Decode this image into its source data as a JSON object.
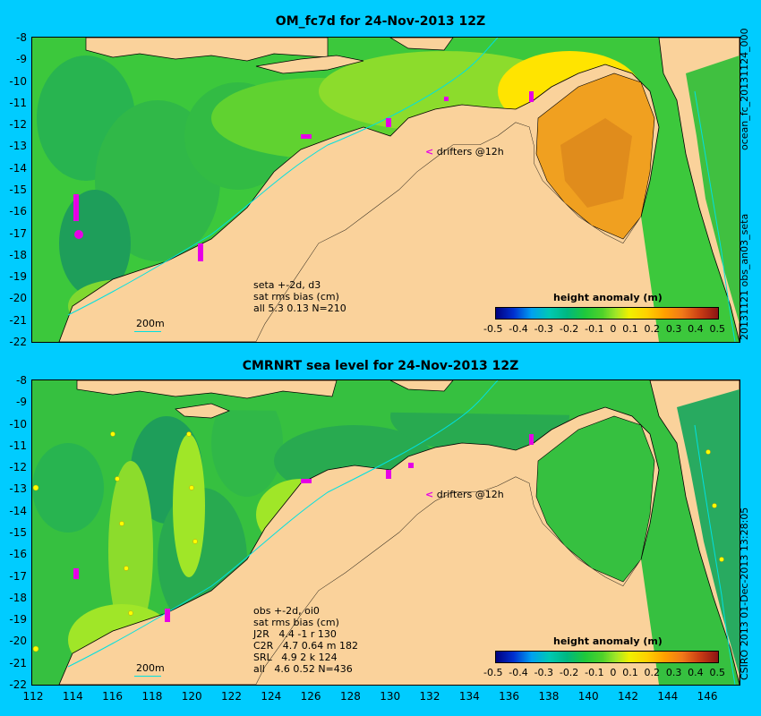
{
  "top_panel": {
    "title": "OM_fc7d for 24-Nov-2013 12Z",
    "side_label_upper": "ocean_fc_20131124_000",
    "side_label_lower": "20131121 obs_an03_seta",
    "stats_lines": [
      "seta +-2d, d3",
      "sat rms bias (cm)",
      "all 5.3 0.13 N=210"
    ],
    "drifters_marker": "<",
    "drifters_label": "drifters @12h",
    "scale_label": "200m",
    "colorbar_title": "height anomaly (m)"
  },
  "bottom_panel": {
    "title": "CMRNRT sea level  for 24-Nov-2013 12Z",
    "side_label": "CSIRO 2013  01-Dec-2013 13:28:05",
    "stats_lines": [
      "obs +-2d, oi0",
      "sat rms bias (cm)",
      "J2R   4.4 -1 r 130",
      "C2R   4.7 0.64 m 182",
      "SRL   4.9 2 k 124",
      "all   4.6 0.52 N=436"
    ],
    "drifters_marker": "<",
    "drifters_label": "drifters @12h",
    "scale_label": "200m",
    "colorbar_title": "height anomaly (m)"
  },
  "latitude_ticks": [
    "-8",
    "-9",
    "-10",
    "-11",
    "-12",
    "-13",
    "-14",
    "-15",
    "-16",
    "-17",
    "-18",
    "-19",
    "-20",
    "-21",
    "-22"
  ],
  "longitude_ticks": [
    "112",
    "114",
    "116",
    "118",
    "120",
    "122",
    "124",
    "126",
    "128",
    "130",
    "132",
    "134",
    "136",
    "138",
    "140",
    "142",
    "144",
    "146"
  ],
  "colorbar_ticks": [
    "-0.5",
    "-0.4",
    "-0.3",
    "-0.2",
    "-0.1",
    "0",
    "0.1",
    "0.2",
    "0.3",
    "0.4",
    "0.5"
  ],
  "colors": {
    "background": "#00ccff",
    "land": "#fad29b",
    "ocean_base": "#3cc83c",
    "drifter": "#e600e6",
    "isobath": "#00e0e0"
  }
}
